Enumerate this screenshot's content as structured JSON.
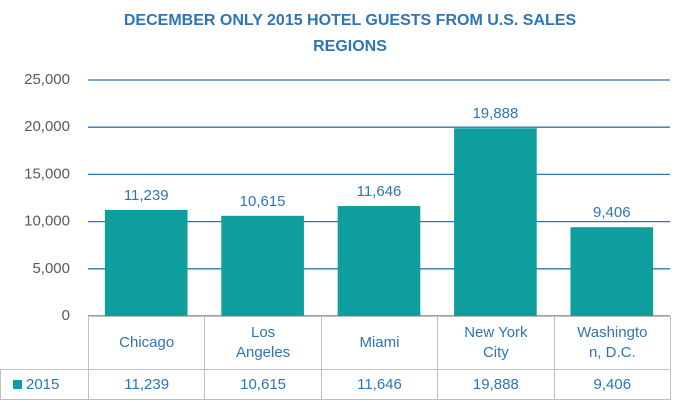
{
  "chart_data": {
    "type": "bar",
    "title": "DECEMBER ONLY 2015 HOTEL GUESTS FROM U.S. SALES REGIONS",
    "categories": [
      "Chicago",
      "Los Angeles",
      "Miami",
      "New York City",
      "Washington, D.C."
    ],
    "series": [
      {
        "name": "2015",
        "color": "#0e9e9e",
        "values": [
          11239,
          10615,
          11646,
          19888,
          9406
        ],
        "value_labels": [
          "11,239",
          "10,615",
          "11,646",
          "19,888",
          "9,406"
        ]
      }
    ],
    "ylim": [
      0,
      25000
    ],
    "yticks": [
      0,
      {
        "value": 5000,
        "label": "5,000"
      },
      {
        "value": 10000,
        "label": "10,000"
      },
      {
        "value": 15000,
        "label": "15,000"
      },
      {
        "value": 20000,
        "label": "20,000"
      },
      {
        "value": 25000,
        "label": "25,000"
      }
    ],
    "grid": true,
    "data_table": true
  }
}
